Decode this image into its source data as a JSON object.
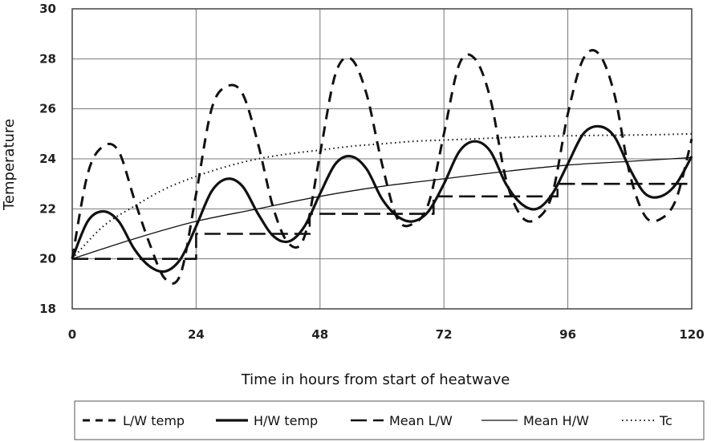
{
  "chart_data": {
    "type": "line",
    "xlabel": "Time in hours from start of heatwave",
    "ylabel": "Temperature",
    "xlim": [
      0,
      120
    ],
    "ylim": [
      18,
      30
    ],
    "xticks": [
      "0",
      "24",
      "48",
      "72",
      "96",
      "120"
    ],
    "yticks": [
      "18",
      "20",
      "22",
      "24",
      "26",
      "28",
      "30"
    ],
    "grid": true,
    "legend_position": "bottom",
    "series": [
      {
        "name": "L/W temp",
        "style": "short-dash",
        "x": [
          0,
          3,
          6,
          9,
          12,
          15,
          18,
          21,
          24,
          27,
          30,
          33,
          36,
          39,
          42,
          45,
          48,
          51,
          54,
          57,
          60,
          63,
          66,
          69,
          72,
          75,
          78,
          81,
          84,
          87,
          90,
          93,
          96,
          99,
          102,
          105,
          108,
          111,
          114,
          117,
          120
        ],
        "values": [
          20.0,
          23.4,
          24.5,
          24.3,
          22.4,
          20.6,
          19.2,
          19.4,
          22.6,
          26.0,
          26.9,
          26.6,
          24.6,
          22.0,
          20.6,
          20.9,
          24.2,
          27.4,
          28.0,
          26.6,
          23.8,
          21.6,
          21.4,
          22.2,
          25.0,
          27.8,
          28.0,
          26.4,
          23.2,
          21.7,
          21.6,
          22.6,
          25.8,
          28.0,
          28.2,
          26.6,
          23.4,
          21.7,
          21.6,
          22.4,
          24.8
        ]
      },
      {
        "name": "H/W temp",
        "style": "solid-thick",
        "x": [
          0,
          3,
          6,
          9,
          12,
          15,
          18,
          21,
          24,
          27,
          30,
          33,
          36,
          39,
          42,
          45,
          48,
          51,
          54,
          57,
          60,
          63,
          66,
          69,
          72,
          75,
          78,
          81,
          84,
          87,
          90,
          93,
          96,
          99,
          102,
          105,
          108,
          111,
          114,
          117,
          120
        ],
        "values": [
          20.0,
          21.5,
          21.9,
          21.5,
          20.4,
          19.7,
          19.5,
          20.0,
          21.3,
          22.7,
          23.2,
          22.9,
          21.8,
          20.9,
          20.7,
          21.3,
          22.6,
          23.8,
          24.1,
          23.6,
          22.4,
          21.7,
          21.5,
          21.9,
          23.0,
          24.3,
          24.7,
          24.3,
          23.0,
          22.2,
          22.0,
          22.6,
          23.8,
          25.0,
          25.3,
          24.9,
          23.6,
          22.6,
          22.5,
          23.0,
          24.1
        ]
      },
      {
        "name": "Mean L/W",
        "style": "long-dash",
        "x": [
          0,
          24,
          24,
          46,
          46,
          70,
          70,
          94,
          94,
          120
        ],
        "values": [
          20.0,
          20.0,
          21.0,
          21.0,
          21.8,
          21.8,
          22.5,
          22.5,
          23.0,
          23.0
        ]
      },
      {
        "name": "Mean H/W",
        "style": "solid-thin",
        "x": [
          0,
          12,
          24,
          36,
          48,
          60,
          72,
          84,
          96,
          108,
          120
        ],
        "values": [
          20.0,
          20.8,
          21.5,
          22.0,
          22.5,
          22.9,
          23.2,
          23.5,
          23.75,
          23.9,
          24.05
        ]
      },
      {
        "name": "Tc",
        "style": "dotted",
        "x": [
          0,
          6,
          12,
          18,
          24,
          30,
          36,
          42,
          48,
          54,
          60,
          66,
          72,
          78,
          84,
          90,
          96,
          102,
          108,
          114,
          120
        ],
        "values": [
          20.0,
          21.3,
          22.1,
          22.8,
          23.3,
          23.7,
          24.0,
          24.2,
          24.35,
          24.5,
          24.6,
          24.7,
          24.75,
          24.8,
          24.85,
          24.9,
          24.92,
          24.94,
          24.95,
          24.97,
          25.0
        ]
      }
    ]
  }
}
